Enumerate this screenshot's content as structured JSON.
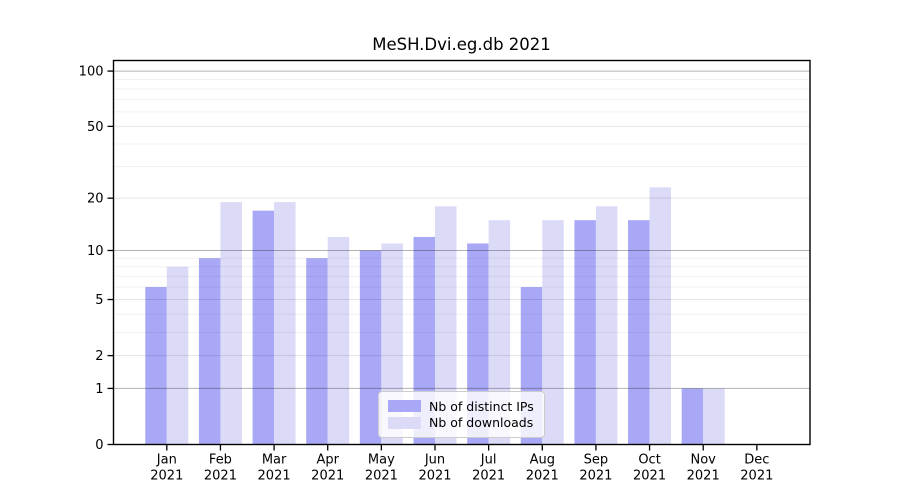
{
  "chart_data": {
    "type": "bar",
    "title": "MeSH.Dvi.eg.db 2021",
    "xlabel": "",
    "ylabel": "",
    "yscale": "log10(1+value)",
    "yticks": [
      0,
      1,
      2,
      5,
      10,
      20,
      50,
      100
    ],
    "yticks_minor": [
      3,
      4,
      6,
      7,
      8,
      9,
      30,
      40,
      60,
      70,
      80,
      90
    ],
    "ylim": [
      0,
      115
    ],
    "grid": true,
    "legend_position": "lower center",
    "categories": [
      "Jan",
      "Feb",
      "Mar",
      "Apr",
      "May",
      "Jun",
      "Jul",
      "Aug",
      "Sep",
      "Oct",
      "Nov",
      "Dec"
    ],
    "year_label": "2021",
    "series": [
      {
        "name": "Nb of distinct IPs",
        "color": "#a8a8f6",
        "values": [
          6,
          9,
          17,
          9,
          10,
          12,
          11,
          6,
          15,
          15,
          1,
          0
        ]
      },
      {
        "name": "Nb of downloads",
        "color": "#dbdbf8",
        "values": [
          8,
          19,
          19,
          12,
          11,
          18,
          15,
          15,
          18,
          23,
          1,
          0
        ]
      }
    ]
  },
  "colors": {
    "distinct_ips": "#a8a8f6",
    "downloads": "#dbdbf8",
    "axis": "#000000",
    "grid_decade": "#b3b3b3",
    "grid_labeled": "#e6e6e6",
    "grid_minor": "#f2f2f2",
    "background": "#ffffff"
  }
}
